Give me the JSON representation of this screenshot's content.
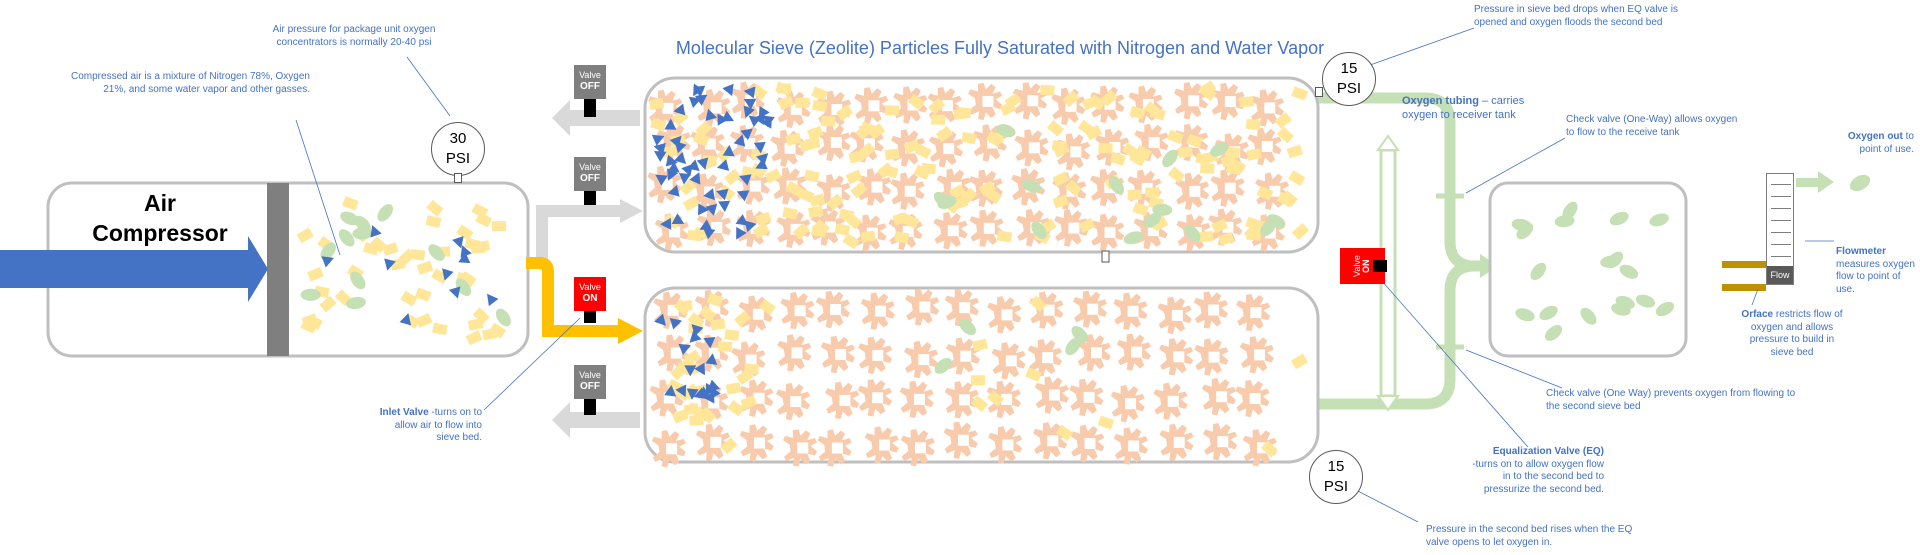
{
  "title": "Molecular Sieve (Zeolite) Particles Fully Saturated with Nitrogen and Water Vapor",
  "compressor": {
    "label_line1": "Air",
    "label_line2": "Compressor"
  },
  "gauges": {
    "compressor": {
      "value": "30",
      "unit": "PSI"
    },
    "top_bed": {
      "value": "15",
      "unit": "PSI"
    },
    "bottom_bed": {
      "value": "15",
      "unit": "PSI"
    }
  },
  "valves": {
    "top_exhaust": {
      "label": "Valve",
      "state": "OFF"
    },
    "top_inlet": {
      "label": "Valve",
      "state": "OFF"
    },
    "bottom_inlet": {
      "label": "Valve",
      "state": "ON"
    },
    "bottom_exhaust": {
      "label": "Valve",
      "state": "OFF"
    },
    "equalization": {
      "label": "Valve",
      "state": "ON"
    }
  },
  "flowmeter": {
    "label": "Flow"
  },
  "annotations": {
    "air_pressure": "Air pressure for package unit oxygen concentrators is normally 20-40 psi",
    "compressed_air": "Compressed air is a mixture of Nitrogen 78%, Oxygen 21%, and some water vapor and other gasses.",
    "inlet_valve_bold": "Inlet Valve",
    "inlet_valve_text": " -turns on to allow air to flow into sieve bed.",
    "pressure_drop": "Pressure in sieve bed drops when EQ valve is opened and oxygen floods the second bed",
    "oxygen_tubing_bold": "Oxygen tubing",
    "oxygen_tubing_text": " – carries oxygen to receiver tank",
    "check_valve_top": "Check valve (One-Way) allows oxygen to flow to the receive tank",
    "check_valve_bottom": "Check valve (One Way) prevents oxygen from flowing to the second sieve bed",
    "eq_valve_bold": "Equalization Valve (EQ)",
    "eq_valve_text": "-turns on to allow oxygen flow in to the second bed to pressurize the second bed.",
    "pressure_rise": "Pressure in the second bed rises when the EQ valve opens to let oxygen in.",
    "oxygen_out_bold": "Oxygen out",
    "oxygen_out_text": " to point of use.",
    "flowmeter_bold": "Flowmeter",
    "flowmeter_text": " measures oxygen flow to point of use.",
    "orifice_bold": "Orface",
    "orifice_text": " restricts flow of oxygen and allows pressure to build in sieve bed"
  },
  "colors": {
    "air_arrow": "#4472c4",
    "flow_arrow": "#ffc000",
    "oxygen_line": "#c5e0b4",
    "exhaust_arrow": "#d9d9d9",
    "zeolite": "#f8cbad",
    "nitrogen": "#ffe699",
    "oxygen_particle": "#c5e0b4",
    "water_vapor": "#4472c4",
    "valve_off": "#7f7f7f",
    "valve_on": "#ff0000",
    "annotation_text": "#4472c4"
  }
}
